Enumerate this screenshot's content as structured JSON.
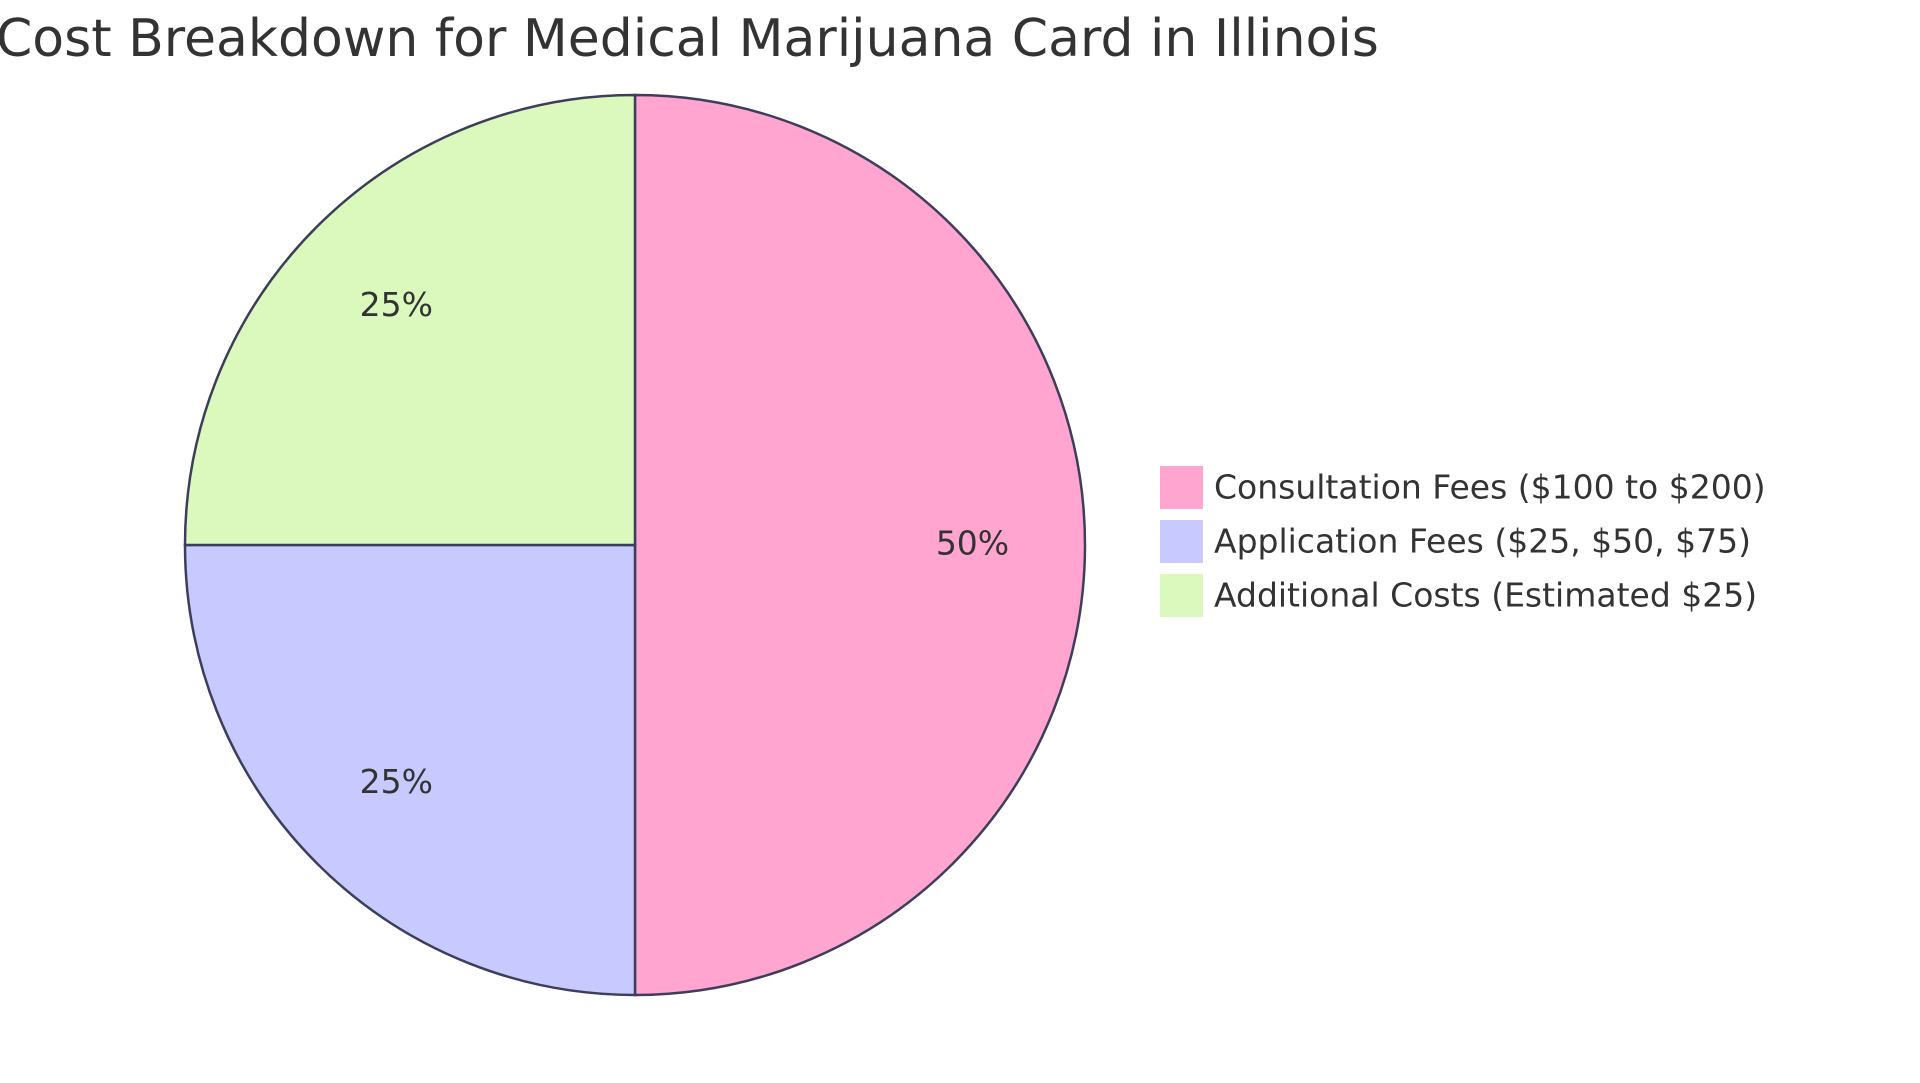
{
  "chart_data": {
    "type": "pie",
    "title": "Cost Breakdown for Medical Marijuana Card in Illinois",
    "categories": [
      "Consultation Fees ($100 to $200)",
      "Application Fees ($25, $50, $75)",
      "Additional Costs (Estimated $25)"
    ],
    "values": [
      50,
      25,
      25
    ],
    "value_labels": [
      "50%",
      "25%",
      "25%"
    ],
    "colors": [
      "#ffa5cf",
      "#c8caff",
      "#dbf9bd"
    ]
  }
}
